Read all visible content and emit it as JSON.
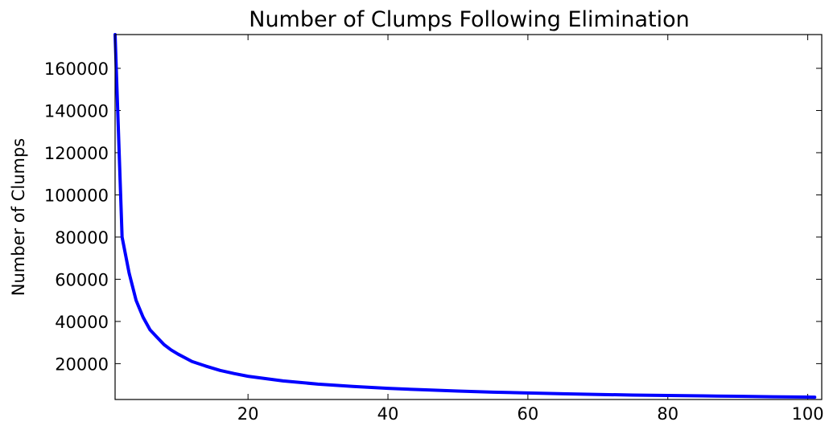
{
  "chart_data": {
    "type": "line",
    "title": "Number of Clumps Following Elimination",
    "xlabel": "",
    "ylabel": "Number of Clumps",
    "xlim": [
      1,
      102
    ],
    "ylim": [
      3000,
      176000
    ],
    "xticks": [
      20,
      40,
      60,
      80,
      100
    ],
    "yticks": [
      20000,
      40000,
      60000,
      80000,
      100000,
      120000,
      140000,
      160000
    ],
    "grid": false,
    "legend": "none",
    "series": [
      {
        "color": "#0000ff",
        "x": [
          1,
          2,
          3,
          4,
          5,
          6,
          7,
          8,
          9,
          10,
          12,
          14,
          16,
          18,
          20,
          25,
          30,
          35,
          40,
          45,
          50,
          55,
          60,
          65,
          70,
          75,
          80,
          85,
          90,
          95,
          100,
          101
        ],
        "y": [
          176000,
          80000,
          63000,
          50000,
          42000,
          36000,
          32500,
          29000,
          26500,
          24500,
          21000,
          18800,
          16800,
          15300,
          14000,
          11800,
          10300,
          9200,
          8300,
          7600,
          7000,
          6500,
          6100,
          5700,
          5400,
          5100,
          4900,
          4700,
          4500,
          4300,
          4150,
          4100
        ]
      }
    ]
  }
}
